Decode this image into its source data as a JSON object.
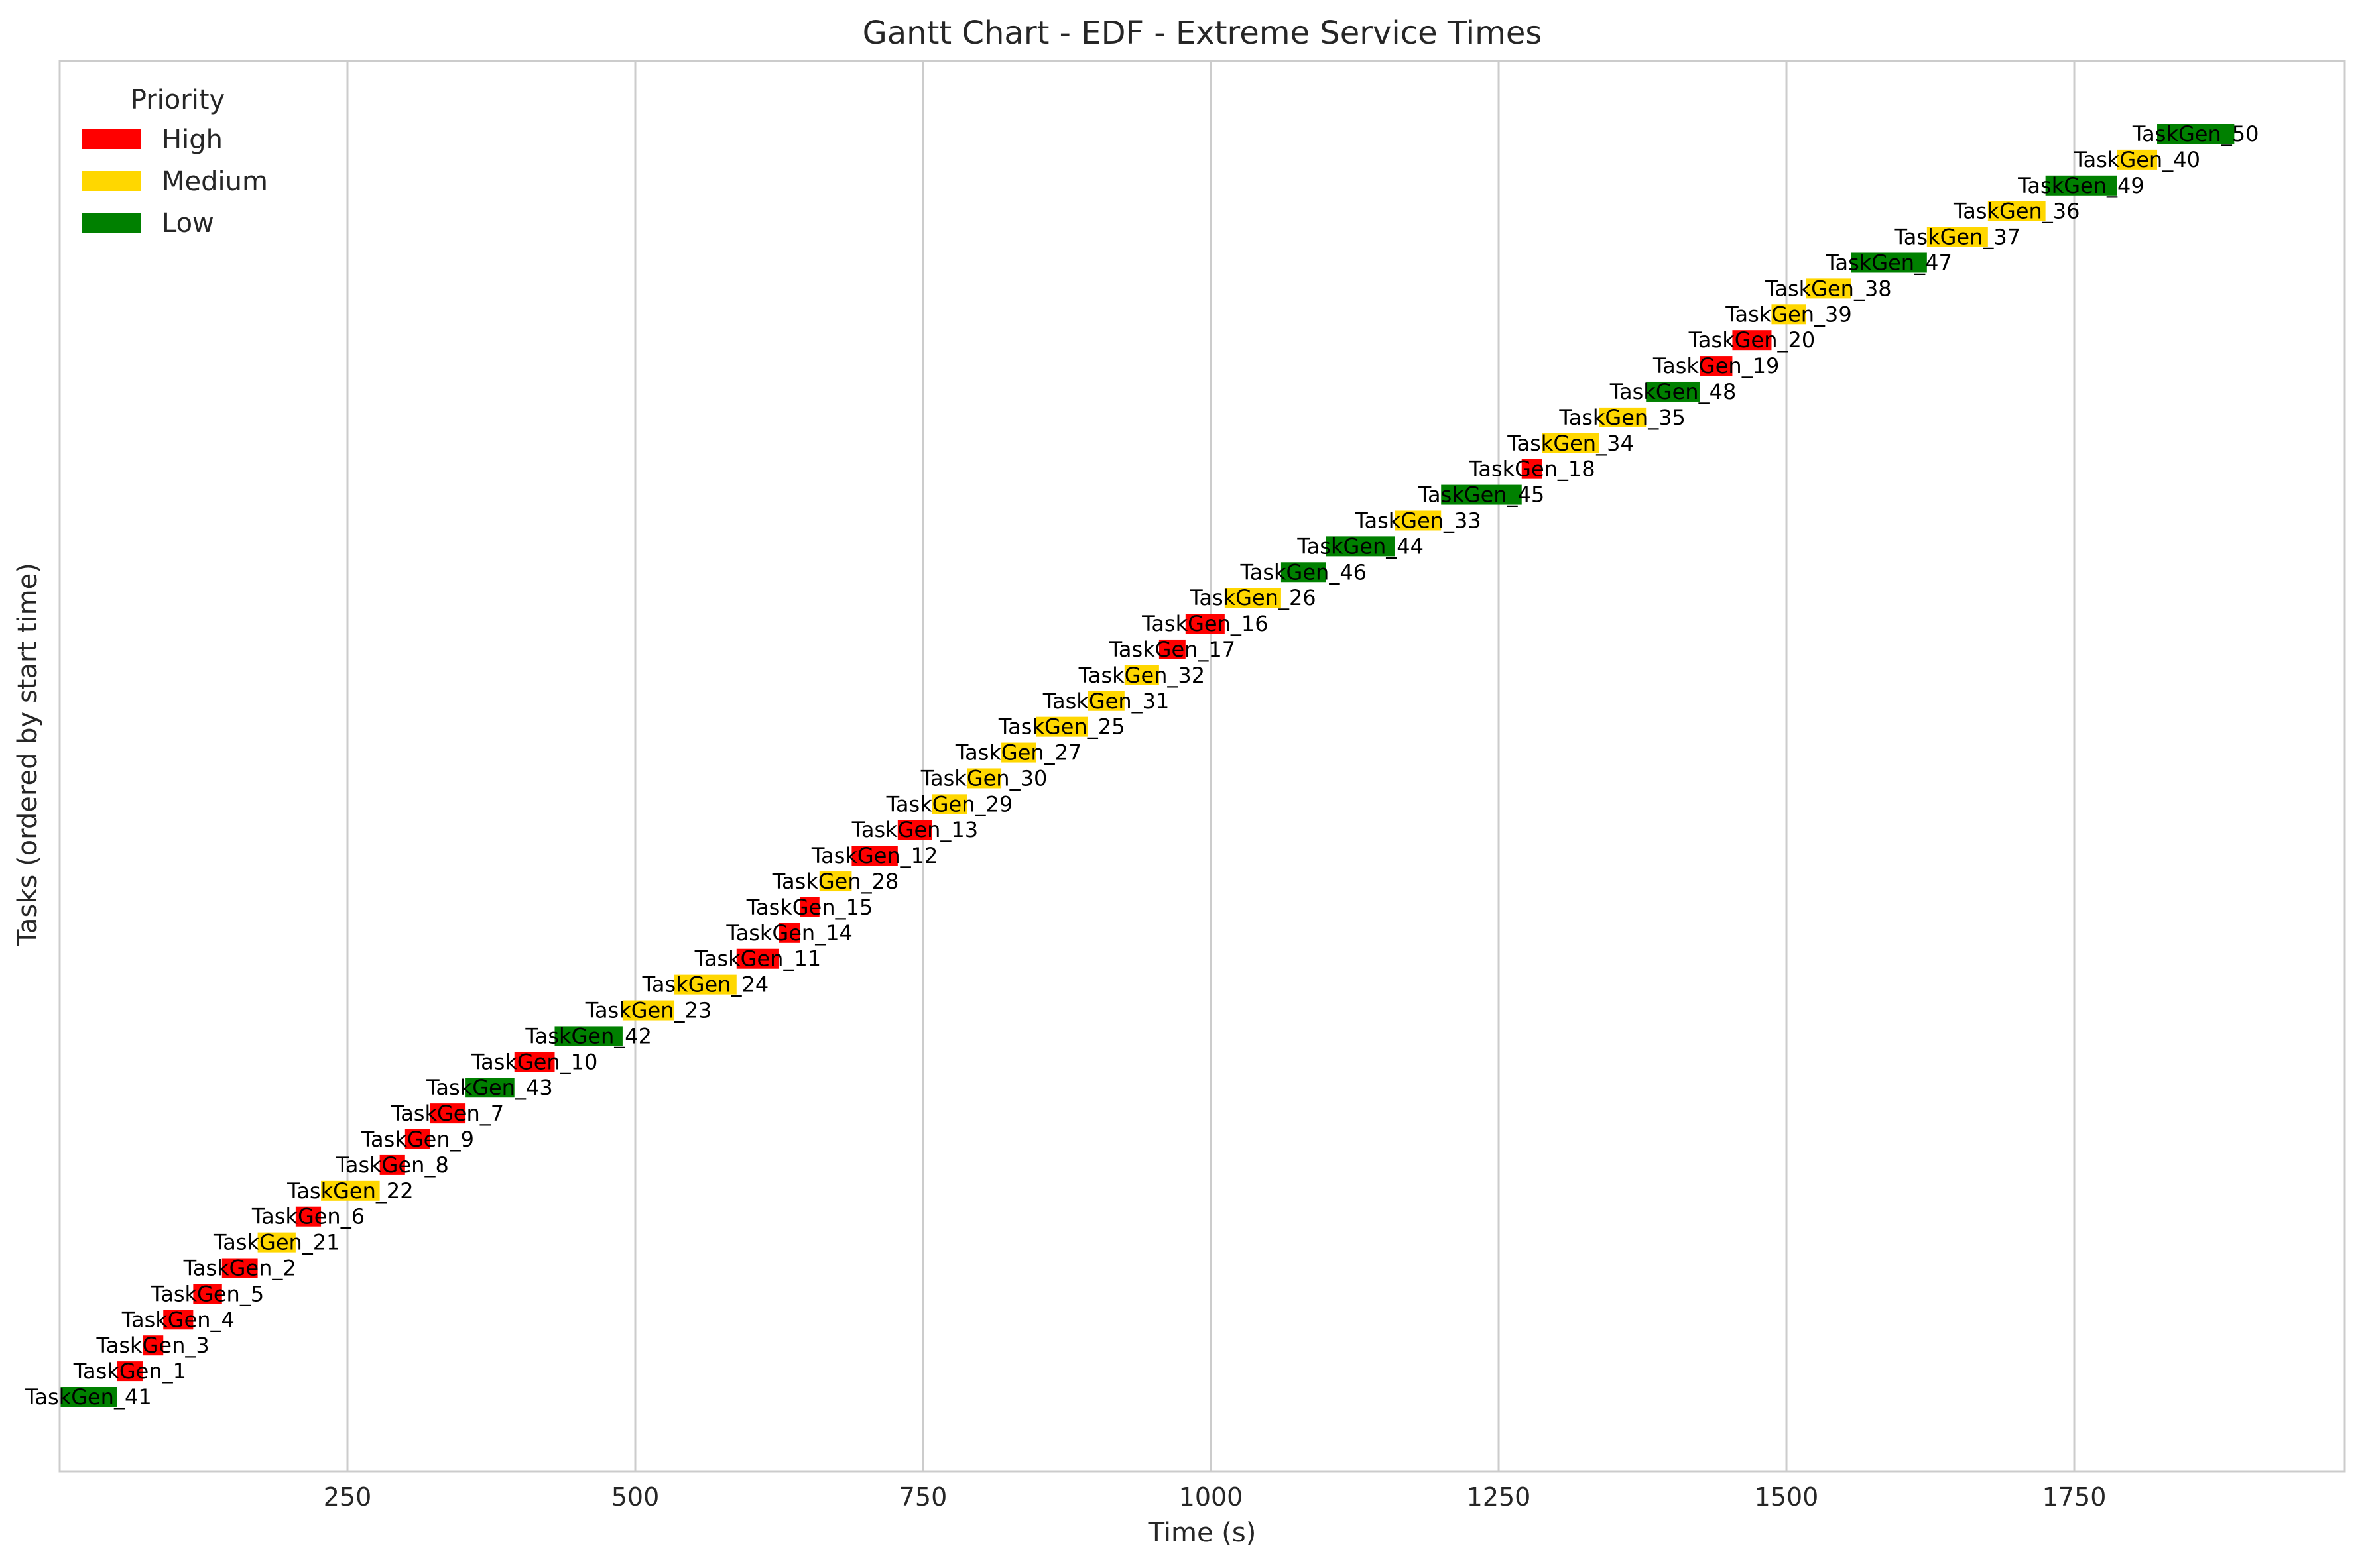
{
  "chart_data": {
    "type": "gantt",
    "title": "Gantt Chart - EDF - Extreme Service Times",
    "xlabel": "Time (s)",
    "ylabel": "Tasks (ordered by start time)",
    "xlim": [
      0,
      1985
    ],
    "xticks": [
      250,
      500,
      750,
      1000,
      1250,
      1500,
      1750
    ],
    "grid": "vertical",
    "legend": {
      "title": "Priority",
      "placement": "top-left",
      "entries": [
        {
          "label": "High",
          "color": "#ff0000"
        },
        {
          "label": "Medium",
          "color": "#ffd700"
        },
        {
          "label": "Low",
          "color": "#008000"
        }
      ]
    },
    "colors": {
      "High": "#ff0000",
      "Medium": "#ffd700",
      "Low": "#008000"
    },
    "tasks": [
      {
        "name": "TaskGen_41",
        "start": 0,
        "end": 50,
        "priority": "Low"
      },
      {
        "name": "TaskGen_1",
        "start": 50,
        "end": 72,
        "priority": "High"
      },
      {
        "name": "TaskGen_3",
        "start": 72,
        "end": 90,
        "priority": "High"
      },
      {
        "name": "TaskGen_4",
        "start": 90,
        "end": 116,
        "priority": "High"
      },
      {
        "name": "TaskGen_5",
        "start": 116,
        "end": 141,
        "priority": "High"
      },
      {
        "name": "TaskGen_2",
        "start": 141,
        "end": 172,
        "priority": "High"
      },
      {
        "name": "TaskGen_21",
        "start": 172,
        "end": 205,
        "priority": "Medium"
      },
      {
        "name": "TaskGen_6",
        "start": 205,
        "end": 227,
        "priority": "High"
      },
      {
        "name": "TaskGen_22",
        "start": 227,
        "end": 278,
        "priority": "Medium"
      },
      {
        "name": "TaskGen_8",
        "start": 278,
        "end": 300,
        "priority": "High"
      },
      {
        "name": "TaskGen_9",
        "start": 300,
        "end": 322,
        "priority": "High"
      },
      {
        "name": "TaskGen_7",
        "start": 322,
        "end": 352,
        "priority": "High"
      },
      {
        "name": "TaskGen_43",
        "start": 352,
        "end": 395,
        "priority": "Low"
      },
      {
        "name": "TaskGen_10",
        "start": 395,
        "end": 430,
        "priority": "High"
      },
      {
        "name": "TaskGen_42",
        "start": 430,
        "end": 489,
        "priority": "Low"
      },
      {
        "name": "TaskGen_23",
        "start": 489,
        "end": 534,
        "priority": "Medium"
      },
      {
        "name": "TaskGen_24",
        "start": 534,
        "end": 588,
        "priority": "Medium"
      },
      {
        "name": "TaskGen_11",
        "start": 588,
        "end": 625,
        "priority": "High"
      },
      {
        "name": "TaskGen_14",
        "start": 625,
        "end": 643,
        "priority": "High"
      },
      {
        "name": "TaskGen_15",
        "start": 643,
        "end": 660,
        "priority": "High"
      },
      {
        "name": "TaskGen_28",
        "start": 660,
        "end": 688,
        "priority": "Medium"
      },
      {
        "name": "TaskGen_12",
        "start": 688,
        "end": 728,
        "priority": "High"
      },
      {
        "name": "TaskGen_13",
        "start": 728,
        "end": 758,
        "priority": "High"
      },
      {
        "name": "TaskGen_29",
        "start": 758,
        "end": 788,
        "priority": "Medium"
      },
      {
        "name": "TaskGen_30",
        "start": 788,
        "end": 818,
        "priority": "Medium"
      },
      {
        "name": "TaskGen_27",
        "start": 818,
        "end": 848,
        "priority": "Medium"
      },
      {
        "name": "TaskGen_25",
        "start": 848,
        "end": 893,
        "priority": "Medium"
      },
      {
        "name": "TaskGen_31",
        "start": 893,
        "end": 925,
        "priority": "Medium"
      },
      {
        "name": "TaskGen_32",
        "start": 925,
        "end": 955,
        "priority": "Medium"
      },
      {
        "name": "TaskGen_17",
        "start": 955,
        "end": 978,
        "priority": "High"
      },
      {
        "name": "TaskGen_16",
        "start": 978,
        "end": 1012,
        "priority": "High"
      },
      {
        "name": "TaskGen_26",
        "start": 1012,
        "end": 1061,
        "priority": "Medium"
      },
      {
        "name": "TaskGen_46",
        "start": 1061,
        "end": 1100,
        "priority": "Low"
      },
      {
        "name": "TaskGen_44",
        "start": 1100,
        "end": 1160,
        "priority": "Low"
      },
      {
        "name": "TaskGen_33",
        "start": 1160,
        "end": 1200,
        "priority": "Medium"
      },
      {
        "name": "TaskGen_45",
        "start": 1200,
        "end": 1270,
        "priority": "Low"
      },
      {
        "name": "TaskGen_18",
        "start": 1270,
        "end": 1288,
        "priority": "High"
      },
      {
        "name": "TaskGen_34",
        "start": 1288,
        "end": 1337,
        "priority": "Medium"
      },
      {
        "name": "TaskGen_35",
        "start": 1337,
        "end": 1378,
        "priority": "Medium"
      },
      {
        "name": "TaskGen_48",
        "start": 1378,
        "end": 1425,
        "priority": "Low"
      },
      {
        "name": "TaskGen_19",
        "start": 1425,
        "end": 1453,
        "priority": "High"
      },
      {
        "name": "TaskGen_20",
        "start": 1453,
        "end": 1487,
        "priority": "High"
      },
      {
        "name": "TaskGen_39",
        "start": 1487,
        "end": 1517,
        "priority": "Medium"
      },
      {
        "name": "TaskGen_38",
        "start": 1517,
        "end": 1556,
        "priority": "Medium"
      },
      {
        "name": "TaskGen_47",
        "start": 1556,
        "end": 1622,
        "priority": "Low"
      },
      {
        "name": "TaskGen_37",
        "start": 1622,
        "end": 1675,
        "priority": "Medium"
      },
      {
        "name": "TaskGen_36",
        "start": 1675,
        "end": 1725,
        "priority": "Medium"
      },
      {
        "name": "TaskGen_49",
        "start": 1725,
        "end": 1787,
        "priority": "Low"
      },
      {
        "name": "TaskGen_40",
        "start": 1787,
        "end": 1822,
        "priority": "Medium"
      },
      {
        "name": "TaskGen_50",
        "start": 1822,
        "end": 1889,
        "priority": "Low"
      }
    ]
  }
}
